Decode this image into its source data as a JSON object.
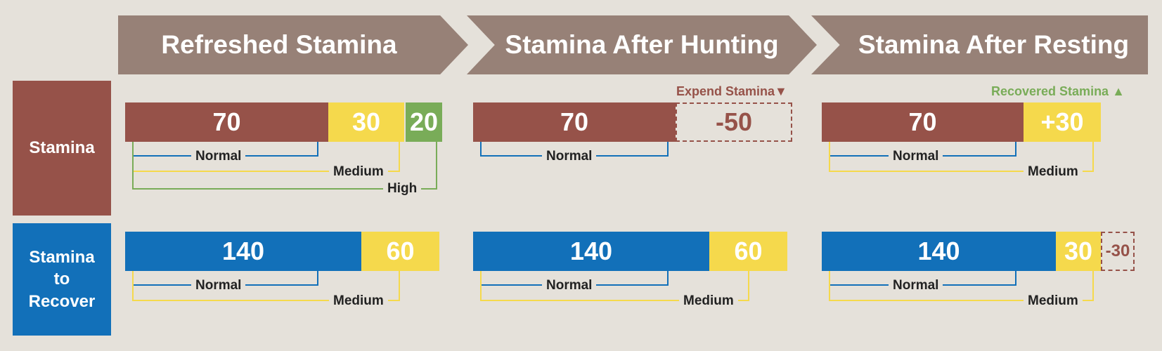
{
  "headers": {
    "refreshed": "Refreshed Stamina",
    "after_hunting": "Stamina After Hunting",
    "after_resting": "Stamina After Resting"
  },
  "row_labels": {
    "stamina": "Stamina",
    "recover": "Stamina to Recover"
  },
  "notes": {
    "expend": "Expend Stamina▼",
    "recovered": "Recovered Stamina ▲"
  },
  "legend_labels": {
    "normal": "Normal",
    "medium": "Medium",
    "high": "High"
  },
  "colors": {
    "background": "#e5e1da",
    "header": "#978177",
    "stamina": "#965249",
    "recover": "#1270b9",
    "medium": "#f5d94c",
    "high": "#79ac58"
  },
  "stamina_row": {
    "refreshed": {
      "normal": "70",
      "medium": "30",
      "high": "20"
    },
    "after_hunting": {
      "normal": "70",
      "expended": "-50"
    },
    "after_resting": {
      "normal": "70",
      "recovered": "+30"
    }
  },
  "recover_row": {
    "refreshed": {
      "normal": "140",
      "medium": "60"
    },
    "after_hunting": {
      "normal": "140",
      "medium": "60"
    },
    "after_resting": {
      "normal": "140",
      "medium": "30",
      "reduced": "-30"
    }
  }
}
